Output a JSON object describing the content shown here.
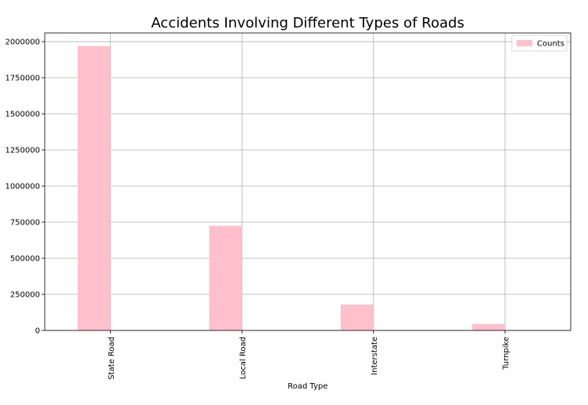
{
  "chart_data": {
    "type": "bar",
    "title": "Accidents Involving Different Types of Roads",
    "xlabel": "Road Type",
    "ylabel": "",
    "categories": [
      "State Road",
      "Local Road",
      "Interstate",
      "Turnpike"
    ],
    "series": [
      {
        "name": "Counts",
        "color": "#ffc0cb",
        "values": [
          1970000,
          725000,
          180000,
          45000
        ]
      }
    ],
    "ylim": [
      0,
      2060000
    ],
    "yticks": [
      0,
      250000,
      500000,
      750000,
      1000000,
      1250000,
      1500000,
      1750000,
      2000000
    ],
    "ytick_labels": [
      "0",
      "250000",
      "500000",
      "750000",
      "1000000",
      "1250000",
      "1500000",
      "1750000",
      "2000000"
    ],
    "grid": true,
    "legend_position": "top-right",
    "x_tick_rotation": "vertical"
  }
}
